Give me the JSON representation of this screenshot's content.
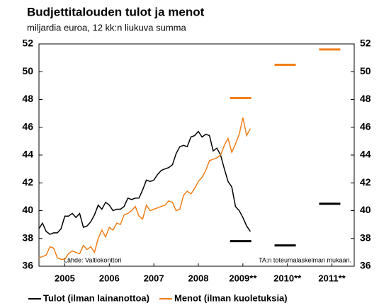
{
  "chart_data": {
    "type": "line",
    "title": "Budjettitalouden tulot ja menot",
    "subtitle": "miljardia euroa, 12 kk:n liukuva summa",
    "annotations": [
      "Lähde: Valtiokonttori",
      "TA:n toteumalaskelman mukaan."
    ],
    "x": [
      2004.917,
      2005,
      2005.083,
      2005.167,
      2005.25,
      2005.333,
      2005.417,
      2005.5,
      2005.583,
      2005.667,
      2005.75,
      2005.833,
      2005.917,
      2006,
      2006.083,
      2006.167,
      2006.25,
      2006.333,
      2006.417,
      2006.5,
      2006.583,
      2006.667,
      2006.75,
      2006.833,
      2006.917,
      2007,
      2007.083,
      2007.167,
      2007.25,
      2007.333,
      2007.417,
      2007.5,
      2007.583,
      2007.667,
      2007.75,
      2007.833,
      2007.917,
      2008,
      2008.083,
      2008.167,
      2008.25,
      2008.333,
      2008.417,
      2008.5,
      2008.583,
      2008.667,
      2008.75,
      2008.833,
      2008.917,
      2009,
      2009.083,
      2009.167,
      2009.25,
      2009.333,
      2009.417,
      2009.5,
      2009.583,
      2009.667
    ],
    "series": [
      {
        "name": "Tulot (ilman lainanottoa)",
        "color": "#000000",
        "values": [
          38.7,
          39.1,
          38.5,
          38.3,
          38.4,
          38.4,
          38.7,
          39.6,
          39.6,
          39.8,
          39.5,
          39.8,
          38.8,
          38.9,
          39.2,
          39.7,
          40.4,
          40.1,
          40.6,
          40.4,
          40.0,
          40.1,
          40.1,
          40.3,
          40.9,
          40.8,
          40.9,
          40.9,
          41.5,
          42.2,
          42.1,
          42.2,
          42.6,
          42.9,
          43.0,
          43.1,
          43.3,
          44.1,
          44.6,
          44.7,
          44.6,
          45.3,
          45.4,
          45.7,
          45.3,
          45.5,
          45.4,
          44.3,
          44.5,
          44.0,
          43.0,
          42.1,
          41.7,
          40.3,
          40.0,
          39.5,
          38.9,
          38.5
        ],
        "forecast_values": [
          37.8,
          37.5,
          40.5
        ]
      },
      {
        "name": "Menot (ilman kuoletuksia)",
        "color": "#f07f1a",
        "values": [
          36.6,
          36.7,
          36.8,
          37.4,
          37.3,
          36.6,
          36.5,
          36.5,
          36.9,
          37.1,
          37.0,
          36.9,
          37.5,
          37.2,
          37.4,
          37.0,
          38.0,
          38.6,
          38.1,
          38.8,
          38.6,
          39.1,
          39.0,
          39.7,
          39.8,
          40.0,
          40.3,
          39.6,
          39.4,
          40.4,
          40.0,
          40.1,
          40.2,
          40.3,
          40.4,
          40.7,
          40.6,
          40.0,
          40.1,
          41.1,
          41.4,
          41.2,
          41.6,
          42.1,
          42.4,
          42.9,
          43.6,
          43.7,
          43.8,
          44.0,
          44.7,
          45.2,
          44.2,
          44.8,
          45.5,
          46.7,
          45.4,
          45.9
        ],
        "forecast_values": [
          48.1,
          50.5,
          51.6
        ]
      }
    ],
    "forecast_x": [
      2009.45,
      2010.45,
      2011.45
    ],
    "xlim": [
      2004.92,
      2012.0
    ],
    "xticks": [
      {
        "value": 2005.5,
        "label": "2005"
      },
      {
        "value": 2006.5,
        "label": "2006"
      },
      {
        "value": 2007.5,
        "label": "2007"
      },
      {
        "value": 2008.5,
        "label": "2008"
      },
      {
        "value": 2009.5,
        "label": "2009**"
      },
      {
        "value": 2010.5,
        "label": "2010**"
      },
      {
        "value": 2011.5,
        "label": "2011**"
      }
    ],
    "ylim": [
      36,
      52
    ],
    "yticks": [
      36,
      38,
      40,
      42,
      44,
      46,
      48,
      50,
      52
    ],
    "y2lim": [
      36,
      52
    ],
    "y2ticks": [
      36,
      38,
      40,
      42,
      44,
      46,
      48,
      50,
      52
    ],
    "grid": false,
    "legend": "bottom"
  }
}
